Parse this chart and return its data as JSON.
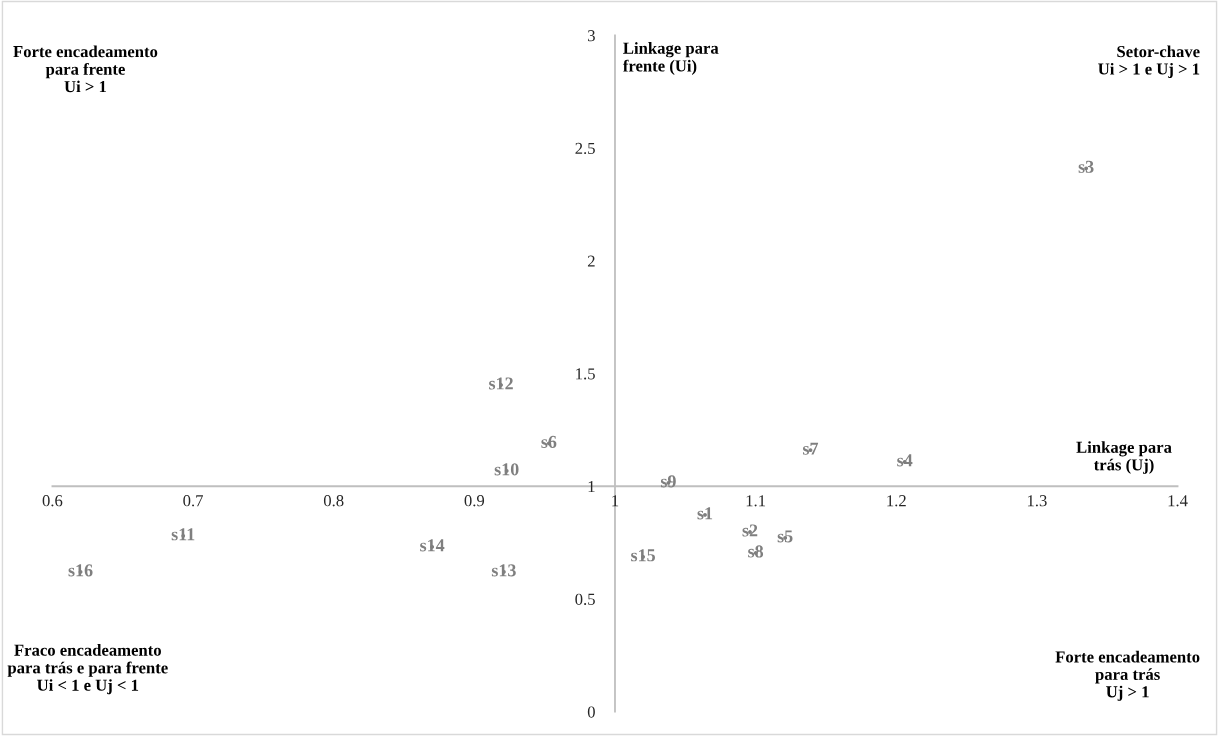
{
  "chart_data": {
    "type": "scatter",
    "xlabel": "Linkage para\ntrás (Uj)",
    "ylabel": "Linkage para\nfrente (Ui)",
    "annotations": [
      "Forte encadeamento\npara frente\nUi > 1",
      "Setor-chave\nUi > 1 e Uj > 1",
      "Fraco encadeamento\npara trás e para frente\nUi < 1 e Uj < 1",
      "Forte encadeamento\npara trás\nUj > 1"
    ],
    "series": [
      {
        "color": "#7f7f7f",
        "x": [
          1.064,
          1.096,
          1.335,
          1.206,
          1.121,
          0.953,
          1.139,
          1.1,
          1.038,
          0.923,
          0.693,
          0.919,
          0.921,
          0.87,
          1.02,
          0.62
        ],
        "values": [
          0.873,
          0.797,
          2.41,
          1.108,
          0.771,
          1.19,
          1.16,
          0.704,
          1.015,
          1.068,
          0.78,
          1.449,
          0.62,
          0.731,
          0.687,
          0.62
        ],
        "value_labels": [
          "s1",
          "s2",
          "s3",
          "s4",
          "s5",
          "s6",
          "s7",
          "s8",
          "s9",
          "s10",
          "s11",
          "s12",
          "s13",
          "s14",
          "s15",
          "s16"
        ]
      }
    ],
    "marker": "circle",
    "xlim": [
      0.6,
      1.4
    ],
    "xticks": [
      0.6,
      0.7,
      0.8,
      0.9,
      1,
      1.1,
      1.2,
      1.3,
      1.4
    ],
    "ylim": [
      0,
      3
    ],
    "yticks": [
      0,
      0.5,
      1,
      1.5,
      2,
      2.5,
      3
    ],
    "grid": false,
    "legend": false
  }
}
